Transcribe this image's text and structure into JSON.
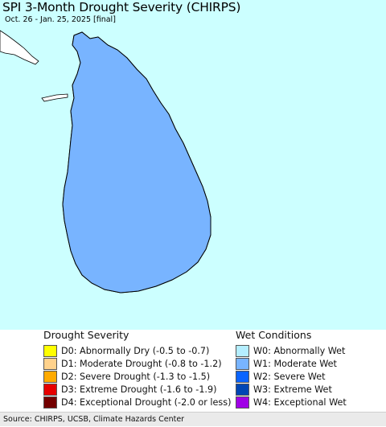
{
  "title": "SPI 3-Month Drought Severity (CHIRPS)",
  "subtitle": "Oct. 26 - Jan. 25, 2025 [final]",
  "map": {
    "ocean_color": "#ccffff",
    "land_outline_color": "#000000",
    "district_line_color": "#777777"
  },
  "legend": {
    "drought_heading": "Drought Severity",
    "wet_heading": "Wet Conditions",
    "drought_items": [
      {
        "label": "D0: Abnormally Dry (-0.5 to -0.7)",
        "color": "#ffff00"
      },
      {
        "label": "D1: Moderate Drought (-0.8 to -1.2)",
        "color": "#ffd28c"
      },
      {
        "label": "D2: Severe Drought (-1.3 to -1.5)",
        "color": "#ffaa00"
      },
      {
        "label": "D3: Extreme Drought (-1.6 to -1.9)",
        "color": "#e60000"
      },
      {
        "label": "D4: Exceptional Drought (-2.0 or less)",
        "color": "#730000"
      }
    ],
    "wet_items": [
      {
        "label": "W0: Abnormally Wet",
        "color": "#b4eeff"
      },
      {
        "label": "W1: Moderate Wet",
        "color": "#78b4ff"
      },
      {
        "label": "W2: Severe Wet",
        "color": "#0a64ff"
      },
      {
        "label": "W3: Extreme Wet",
        "color": "#0046b4"
      },
      {
        "label": "W4: Exceptional Wet",
        "color": "#a000e6"
      }
    ]
  },
  "footer": "Source: CHIRPS, UCSB, Climate Hazards Center"
}
